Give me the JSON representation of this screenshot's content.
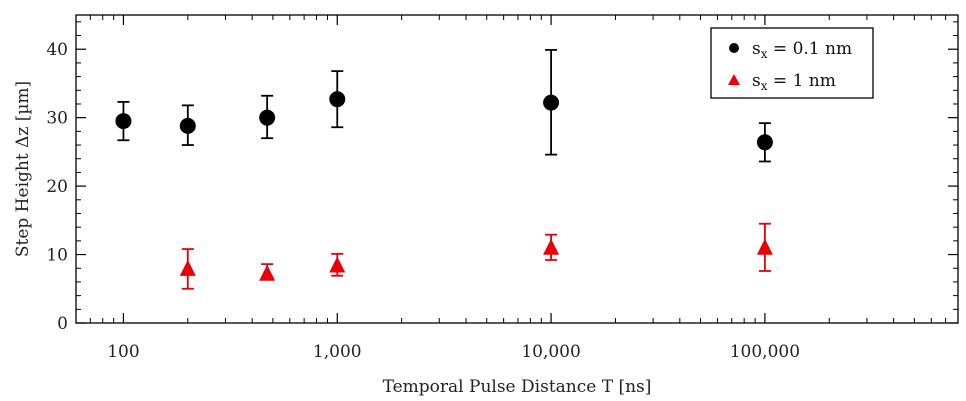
{
  "chart_data": {
    "type": "scatter",
    "xscale": "log",
    "xlim": [
      60,
      800000
    ],
    "ylim": [
      0,
      45
    ],
    "xlabel": "Temporal Pulse Distance T [ns]",
    "ylabel": "Step Height Δz [µm]",
    "x_ticks": [
      {
        "value": 100,
        "label": "100"
      },
      {
        "value": 1000,
        "label": "1,000"
      },
      {
        "value": 10000,
        "label": "10,000"
      },
      {
        "value": 100000,
        "label": "100,000"
      }
    ],
    "y_ticks": [
      {
        "value": 0,
        "label": "0"
      },
      {
        "value": 10,
        "label": "10"
      },
      {
        "value": 20,
        "label": "20"
      },
      {
        "value": 30,
        "label": "30"
      },
      {
        "value": 40,
        "label": "40"
      }
    ],
    "grid": false,
    "legend_position": "top-right",
    "series": [
      {
        "name": "sx = 0.1 nm",
        "name_base": "s",
        "name_sub": "x",
        "name_rest": " = 0.1 nm",
        "marker": "circle",
        "color": "#000000",
        "points": [
          {
            "x": 100,
            "y": 29.5,
            "err_low": 26.7,
            "err_high": 32.3
          },
          {
            "x": 200,
            "y": 28.8,
            "err_low": 26.0,
            "err_high": 31.8
          },
          {
            "x": 470,
            "y": 30.0,
            "err_low": 27.0,
            "err_high": 33.2
          },
          {
            "x": 1000,
            "y": 32.7,
            "err_low": 28.6,
            "err_high": 36.8
          },
          {
            "x": 10000,
            "y": 32.2,
            "err_low": 24.6,
            "err_high": 39.9
          },
          {
            "x": 100000,
            "y": 26.4,
            "err_low": 23.6,
            "err_high": 29.2
          }
        ]
      },
      {
        "name": "sx = 1 nm",
        "name_base": "s",
        "name_sub": "x",
        "name_rest": " = 1 nm",
        "marker": "triangle",
        "color": "#e8000b",
        "points": [
          {
            "x": 200,
            "y": 7.9,
            "err_low": 5.0,
            "err_high": 10.8
          },
          {
            "x": 470,
            "y": 7.2,
            "err_low": 6.5,
            "err_high": 8.6
          },
          {
            "x": 1000,
            "y": 8.4,
            "err_low": 6.9,
            "err_high": 10.1
          },
          {
            "x": 10000,
            "y": 11.0,
            "err_low": 9.2,
            "err_high": 12.9
          },
          {
            "x": 100000,
            "y": 11.0,
            "err_low": 7.6,
            "err_high": 14.5
          }
        ]
      }
    ]
  }
}
